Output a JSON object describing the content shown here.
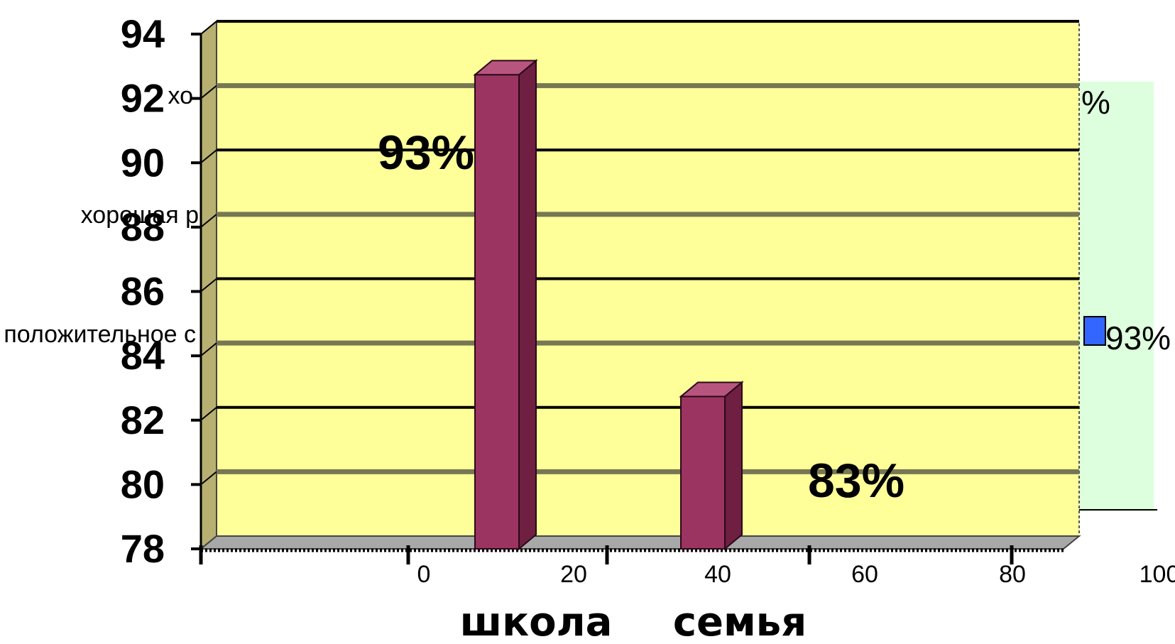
{
  "chart_data": {
    "type": "bar",
    "categories": [
      "школа",
      "семья"
    ],
    "values": [
      93,
      83
    ],
    "data_labels": [
      "93%",
      "83%"
    ],
    "ylim": [
      78,
      94
    ],
    "yticks": [
      "78",
      "80",
      "82",
      "84",
      "86",
      "88",
      "90",
      "92",
      "94"
    ],
    "grid": true,
    "colors": {
      "bar": "#9b3460",
      "bar_side": "#6e1f42",
      "bar_top": "#b8557f",
      "plot_bg": "#ffff99",
      "wall_left": "#b8b070",
      "floor": "#a8a8a8",
      "gridline_dark": "#000000",
      "gridline_light": "#777755",
      "background_panel": "#ddffdd",
      "background_marker": "#3366ff"
    },
    "background_chart": {
      "xticks": [
        "0",
        "20",
        "40",
        "60",
        "80",
        "100"
      ],
      "category_labels": [
        "хорошая р",
        "положительное с",
        "хо"
      ],
      "value_labels": [
        "93%",
        "%"
      ]
    }
  }
}
